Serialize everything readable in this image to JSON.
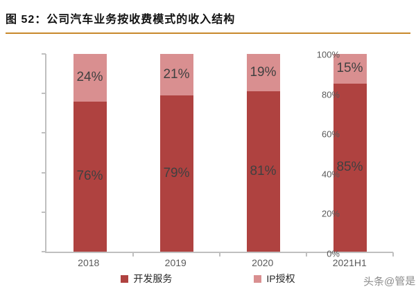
{
  "title": "图 52：公司汽车业务按收费模式的收入结构",
  "watermark": "头条@管是",
  "colors": {
    "title_rule": "#C8882A",
    "dev_service": "#AF4240",
    "ip_license": "#D98F90",
    "axis_line": "#BFBFBF",
    "axis_text": "#595959",
    "bar_label": "#404040",
    "watermark_text": "#8C8C8C"
  },
  "chart_data": {
    "type": "bar",
    "stacked": true,
    "title": "公司汽车业务按收费模式的收入结构",
    "categories": [
      "2018",
      "2019",
      "2020",
      "2021H1"
    ],
    "series": [
      {
        "name": "开发服务",
        "color_key": "dev_service",
        "values": [
          76,
          79,
          81,
          85
        ]
      },
      {
        "name": "IP授权",
        "color_key": "ip_license",
        "values": [
          24,
          21,
          19,
          15
        ]
      }
    ],
    "unit": "%",
    "ylim": [
      0,
      100
    ],
    "yticks": [
      0,
      20,
      40,
      60,
      80,
      100
    ],
    "grid": false,
    "legend_position": "bottom",
    "data_labels": true
  }
}
